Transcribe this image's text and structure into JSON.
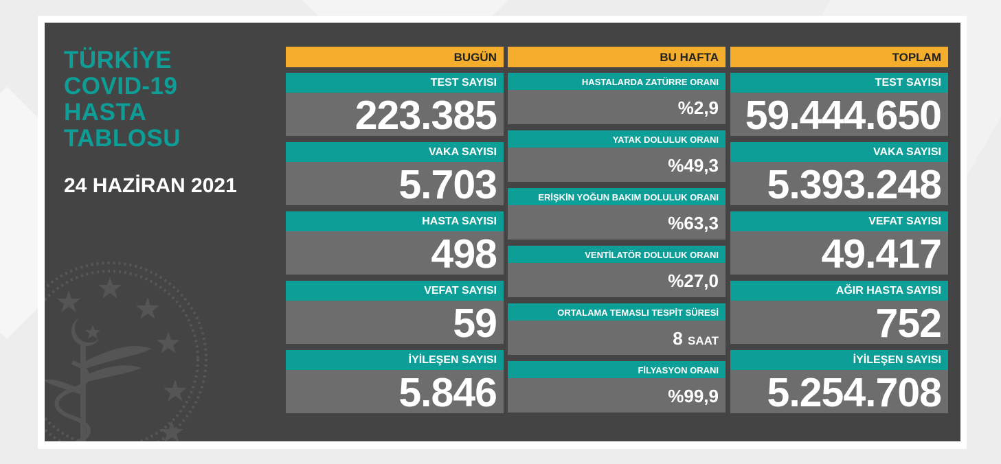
{
  "title": "TÜRKİYE\nCOVID-19\nHASTA\nTABLOSU",
  "date": "24 HAZİRAN 2021",
  "columns": {
    "bugun": {
      "header": "BUGÜN",
      "items": [
        {
          "label": "TEST SAYISI",
          "value": "223.385"
        },
        {
          "label": "VAKA SAYISI",
          "value": "5.703"
        },
        {
          "label": "HASTA SAYISI",
          "value": "498"
        },
        {
          "label": "VEFAT SAYISI",
          "value": "59"
        },
        {
          "label": "İYİLEŞEN SAYISI",
          "value": "5.846"
        }
      ]
    },
    "bu_hafta": {
      "header": "BU HAFTA",
      "items": [
        {
          "label": "HASTALARDA ZATÜRRE ORANI",
          "value": "%2,9",
          "unit": ""
        },
        {
          "label": "YATAK DOLULUK ORANI",
          "value": "%49,3",
          "unit": ""
        },
        {
          "label": "ERİŞKİN YOĞUN BAKIM DOLULUK ORANI",
          "value": "%63,3",
          "unit": ""
        },
        {
          "label": "VENTİLATÖR DOLULUK ORANI",
          "value": "%27,0",
          "unit": ""
        },
        {
          "label": "ORTALAMA TEMASLI TESPİT SÜRESİ",
          "value": "8",
          "unit": "SAAT"
        },
        {
          "label": "FİLYASYON ORANI",
          "value": "%99,9",
          "unit": ""
        }
      ]
    },
    "toplam": {
      "header": "TOPLAM",
      "items": [
        {
          "label": "TEST SAYISI",
          "value": "59.444.650"
        },
        {
          "label": "VAKA SAYISI",
          "value": "5.393.248"
        },
        {
          "label": "VEFAT SAYISI",
          "value": "49.417"
        },
        {
          "label": "AĞIR HASTA SAYISI",
          "value": "752"
        },
        {
          "label": "İYİLEŞEN SAYISI",
          "value": "5.254.708"
        }
      ]
    }
  },
  "colors": {
    "page_bg": "#ededed",
    "board_bg": "#444444",
    "header_bg": "#f5ae2b",
    "label_bg": "#0e9e98",
    "value_bg": "#6d6d6d",
    "title_text": "#0e9e98"
  },
  "icons": {
    "emblem": "ministry-of-health-emblem"
  }
}
